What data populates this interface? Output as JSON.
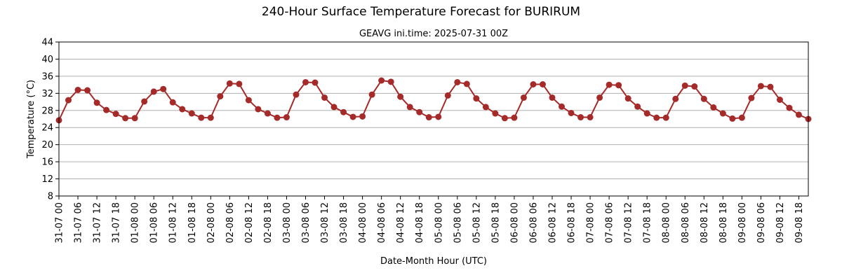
{
  "chart_data": {
    "type": "line",
    "title": "240-Hour Surface Temperature Forecast for BURIRUM",
    "subtitle": "GEAVG ini.time: 2025-07-31 00Z",
    "xlabel": "Date-Month Hour (UTC)",
    "ylabel": "Temperature (°C)",
    "ylim": [
      8,
      44
    ],
    "yticks": [
      8,
      12,
      16,
      20,
      24,
      28,
      32,
      36,
      40,
      44
    ],
    "grid": "horizontal",
    "x_start": "31-07 00",
    "x_step_hours": 3,
    "x_tick_every_hours": 6,
    "xticks": [
      "31-07 00",
      "31-07 06",
      "31-07 12",
      "31-07 18",
      "01-08 00",
      "01-08 06",
      "01-08 12",
      "01-08 18",
      "02-08 00",
      "02-08 06",
      "02-08 12",
      "02-08 18",
      "03-08 00",
      "03-08 06",
      "03-08 12",
      "03-08 18",
      "04-08 00",
      "04-08 06",
      "04-08 12",
      "04-08 18",
      "05-08 00",
      "05-08 06",
      "05-08 12",
      "05-08 18",
      "06-08 00",
      "06-08 06",
      "06-08 12",
      "06-08 18",
      "07-08 00",
      "07-08 06",
      "07-08 12",
      "07-08 18",
      "08-08 00",
      "08-08 06",
      "08-08 12",
      "08-08 18",
      "09-08 00",
      "09-08 06",
      "09-08 12",
      "09-08 18"
    ],
    "series": [
      {
        "color": "#a52a2a",
        "marker": "circle",
        "values": [
          25.7,
          30.4,
          32.8,
          32.7,
          29.8,
          28.1,
          27.2,
          26.2,
          26.2,
          30.1,
          32.4,
          33.0,
          29.9,
          28.3,
          27.3,
          26.3,
          26.3,
          31.3,
          34.3,
          34.2,
          30.4,
          28.3,
          27.3,
          26.3,
          26.4,
          31.7,
          34.6,
          34.5,
          31.0,
          28.8,
          27.6,
          26.5,
          26.6,
          31.7,
          35.0,
          34.7,
          31.2,
          28.8,
          27.6,
          26.4,
          26.5,
          31.5,
          34.6,
          34.2,
          30.8,
          28.8,
          27.3,
          26.2,
          26.3,
          31.0,
          34.1,
          34.1,
          31.0,
          28.9,
          27.4,
          26.4,
          26.4,
          31.0,
          34.0,
          33.9,
          30.8,
          28.9,
          27.3,
          26.3,
          26.3,
          30.7,
          33.8,
          33.6,
          30.7,
          28.7,
          27.3,
          26.1,
          26.3,
          30.9,
          33.7,
          33.5,
          30.5,
          28.6,
          27.0,
          26.0
        ]
      }
    ]
  }
}
